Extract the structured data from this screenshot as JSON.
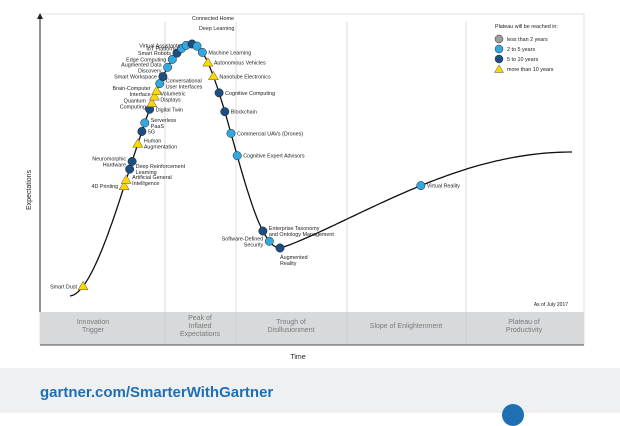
{
  "chart_data": {
    "type": "scatter",
    "title": "",
    "xlabel": "Time",
    "ylabel": "Expectations",
    "as_of": "As of July 2017",
    "phases": [
      {
        "label_lines": [
          "Innovation",
          "Trigger"
        ]
      },
      {
        "label_lines": [
          "Peak of",
          "Inflated",
          "Expectations"
        ]
      },
      {
        "label_lines": [
          "Trough of",
          "Disillusionment"
        ]
      },
      {
        "label_lines": [
          "Slope of Enlightenment"
        ]
      },
      {
        "label_lines": [
          "Plateau of",
          "Productivity"
        ]
      }
    ],
    "legend": {
      "title": "Plateau will be reached in:",
      "placement": "top-right",
      "entries": [
        {
          "key": "lt2",
          "label": "less than 2 years",
          "color": "#9e9e9e",
          "marker": "circle"
        },
        {
          "key": "2to5",
          "label": "2 to 5 years",
          "color": "#33a8e0",
          "marker": "circle"
        },
        {
          "key": "5to10",
          "label": "5 to 10 years",
          "color": "#1b4f82",
          "marker": "circle"
        },
        {
          "key": "gt10",
          "label": "more than 10 years",
          "color": "#ffd600",
          "marker": "triangle"
        }
      ]
    },
    "technologies": [
      {
        "label_lines": [
          "Smart Dust"
        ],
        "t": 0.06,
        "cat": "gt10",
        "side": "left"
      },
      {
        "label_lines": [
          "4D Printing"
        ],
        "t": 0.292,
        "cat": "gt10",
        "side": "left"
      },
      {
        "label_lines": [
          "Artificial General",
          "Intelligence"
        ],
        "t": 0.304,
        "cat": "gt10",
        "side": "right"
      },
      {
        "label_lines": [
          "Deep Reinforcement",
          "Learning"
        ],
        "t": 0.325,
        "cat": "5to10",
        "side": "right"
      },
      {
        "label_lines": [
          "Neuromorphic",
          "Hardware"
        ],
        "t": 0.34,
        "cat": "5to10",
        "side": "left"
      },
      {
        "label_lines": [
          "Human",
          "Augmentation"
        ],
        "t": 0.375,
        "cat": "gt10",
        "side": "right"
      },
      {
        "label_lines": [
          "5G"
        ],
        "t": 0.4,
        "cat": "5to10",
        "side": "right"
      },
      {
        "label_lines": [
          "Serverless",
          "PaaS"
        ],
        "t": 0.418,
        "cat": "2to5",
        "side": "right"
      },
      {
        "label_lines": [
          "Digital Twin"
        ],
        "t": 0.448,
        "cat": "5to10",
        "side": "right"
      },
      {
        "label_lines": [
          "Quantum",
          "Computing"
        ],
        "t": 0.462,
        "cat": "gt10",
        "side": "left"
      },
      {
        "label_lines": [
          "Volumetric",
          "Displays"
        ],
        "t": 0.478,
        "cat": "gt10",
        "side": "right"
      },
      {
        "label_lines": [
          "Brain-Computer",
          "Interface"
        ],
        "t": 0.492,
        "cat": "gt10",
        "side": "left"
      },
      {
        "label_lines": [
          "Conversational",
          "User Interfaces"
        ],
        "t": 0.512,
        "cat": "2to5",
        "side": "right"
      },
      {
        "label_lines": [
          "Smart Workspace"
        ],
        "t": 0.532,
        "cat": "5to10",
        "side": "left"
      },
      {
        "label_lines": [
          "Augmented Data",
          "Discovery"
        ],
        "t": 0.562,
        "cat": "2to5",
        "side": "left"
      },
      {
        "label_lines": [
          "Edge Computing"
        ],
        "t": 0.592,
        "cat": "2to5",
        "side": "left"
      },
      {
        "label_lines": [
          "Smart Robots"
        ],
        "t": 0.622,
        "cat": "5to10",
        "side": "left"
      },
      {
        "label_lines": [
          "IoT Platform"
        ],
        "t": 0.652,
        "cat": "2to5",
        "side": "left"
      },
      {
        "label_lines": [
          "Virtual Assistants"
        ],
        "t": 0.682,
        "cat": "2to5",
        "side": "left"
      },
      {
        "label_lines": [
          "Connected Home"
        ],
        "t": 0.72,
        "cat": "5to10",
        "side": "top"
      },
      {
        "label_lines": [
          "Deep Learning"
        ],
        "t": 0.748,
        "cat": "2to5",
        "side": "top"
      },
      {
        "label_lines": [
          "Machine Learning"
        ],
        "t": 0.776,
        "cat": "2to5",
        "side": "right"
      },
      {
        "label_lines": [
          "Autonomous Vehicles"
        ],
        "t": 0.804,
        "cat": "gt10",
        "side": "right"
      },
      {
        "label_lines": [
          "Nanotube Electronics"
        ],
        "t": 0.832,
        "cat": "gt10",
        "side": "right"
      },
      {
        "label_lines": [
          "Cognitive Computing"
        ],
        "t": 0.86,
        "cat": "5to10",
        "side": "right"
      },
      {
        "label_lines": [
          "Blockchain"
        ],
        "t": 0.888,
        "cat": "5to10",
        "side": "right"
      },
      {
        "label_lines": [
          "Commercial UAVs (Drones)"
        ],
        "t": 0.918,
        "cat": "2to5",
        "side": "right"
      },
      {
        "label_lines": [
          "Cognitive Expert Advisors"
        ],
        "t": 0.948,
        "cat": "2to5",
        "side": "right"
      },
      {
        "label_lines": [
          "Enterprise Taxonomy",
          "and Ontology Management"
        ],
        "t": 1.07,
        "cat": "5to10",
        "side": "right"
      },
      {
        "label_lines": [
          "Software-Defined",
          "Security"
        ],
        "t": 1.1,
        "cat": "2to5",
        "side": "left"
      },
      {
        "label_lines": [
          "Augmented",
          "Reality"
        ],
        "t": 1.15,
        "cat": "5to10",
        "side": "below"
      },
      {
        "label_lines": [
          "Virtual Reality"
        ],
        "t": 1.56,
        "cat": "2to5",
        "side": "right"
      }
    ]
  },
  "footer": {
    "url": "gartner.com/SmarterWithGartner"
  }
}
